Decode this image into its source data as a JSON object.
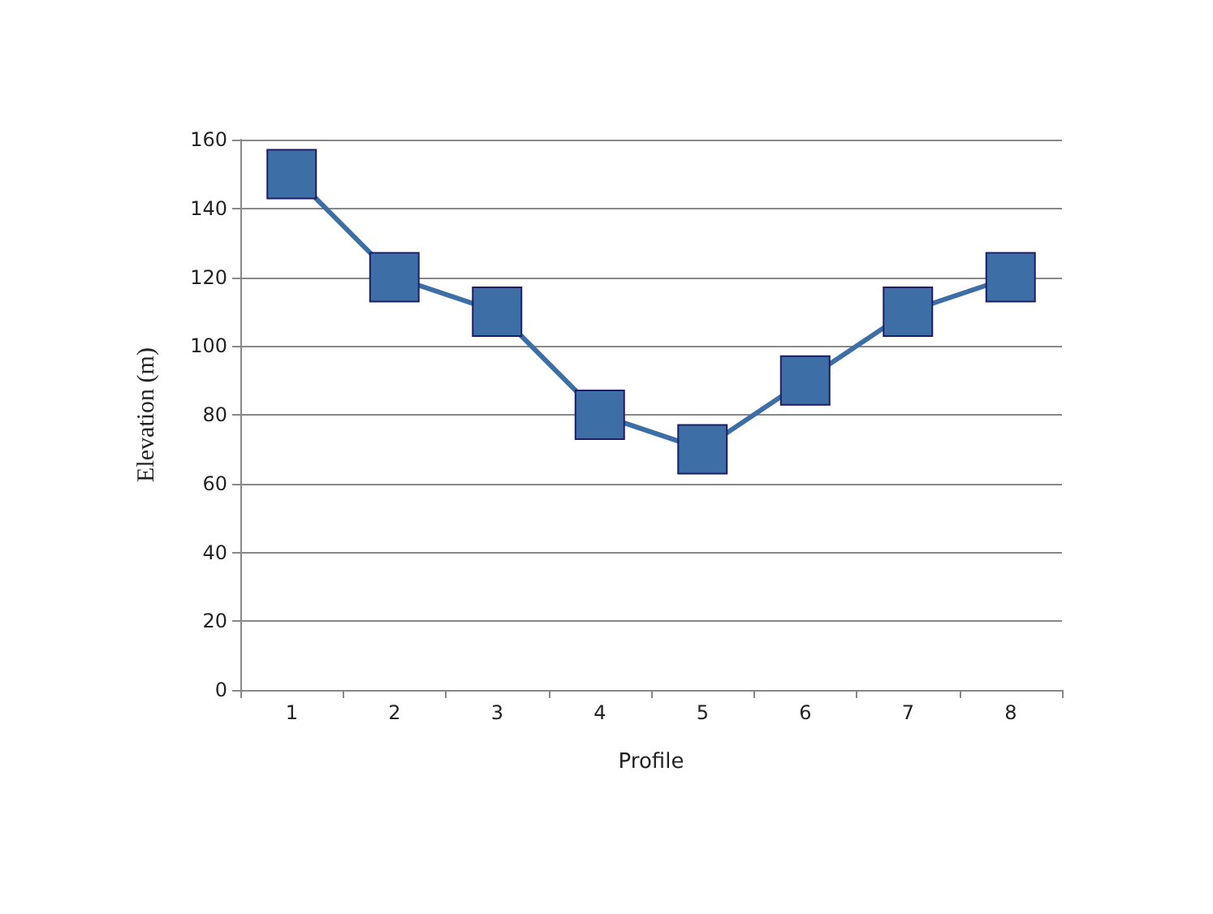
{
  "chart_data": {
    "type": "line",
    "categories": [
      "1",
      "2",
      "3",
      "4",
      "5",
      "6",
      "7",
      "8"
    ],
    "series": [
      {
        "color": "#3d6fa6",
        "values": [
          150,
          120,
          110,
          80,
          70,
          90,
          110,
          120
        ]
      }
    ],
    "xlabel": "Profile",
    "ylabel": "Elevation (m)",
    "ylim": [
      0,
      160
    ],
    "yticks": [
      0,
      20,
      40,
      60,
      80,
      100,
      120,
      140,
      160
    ],
    "grid": "y",
    "marker": "square",
    "line_style": "solid"
  }
}
